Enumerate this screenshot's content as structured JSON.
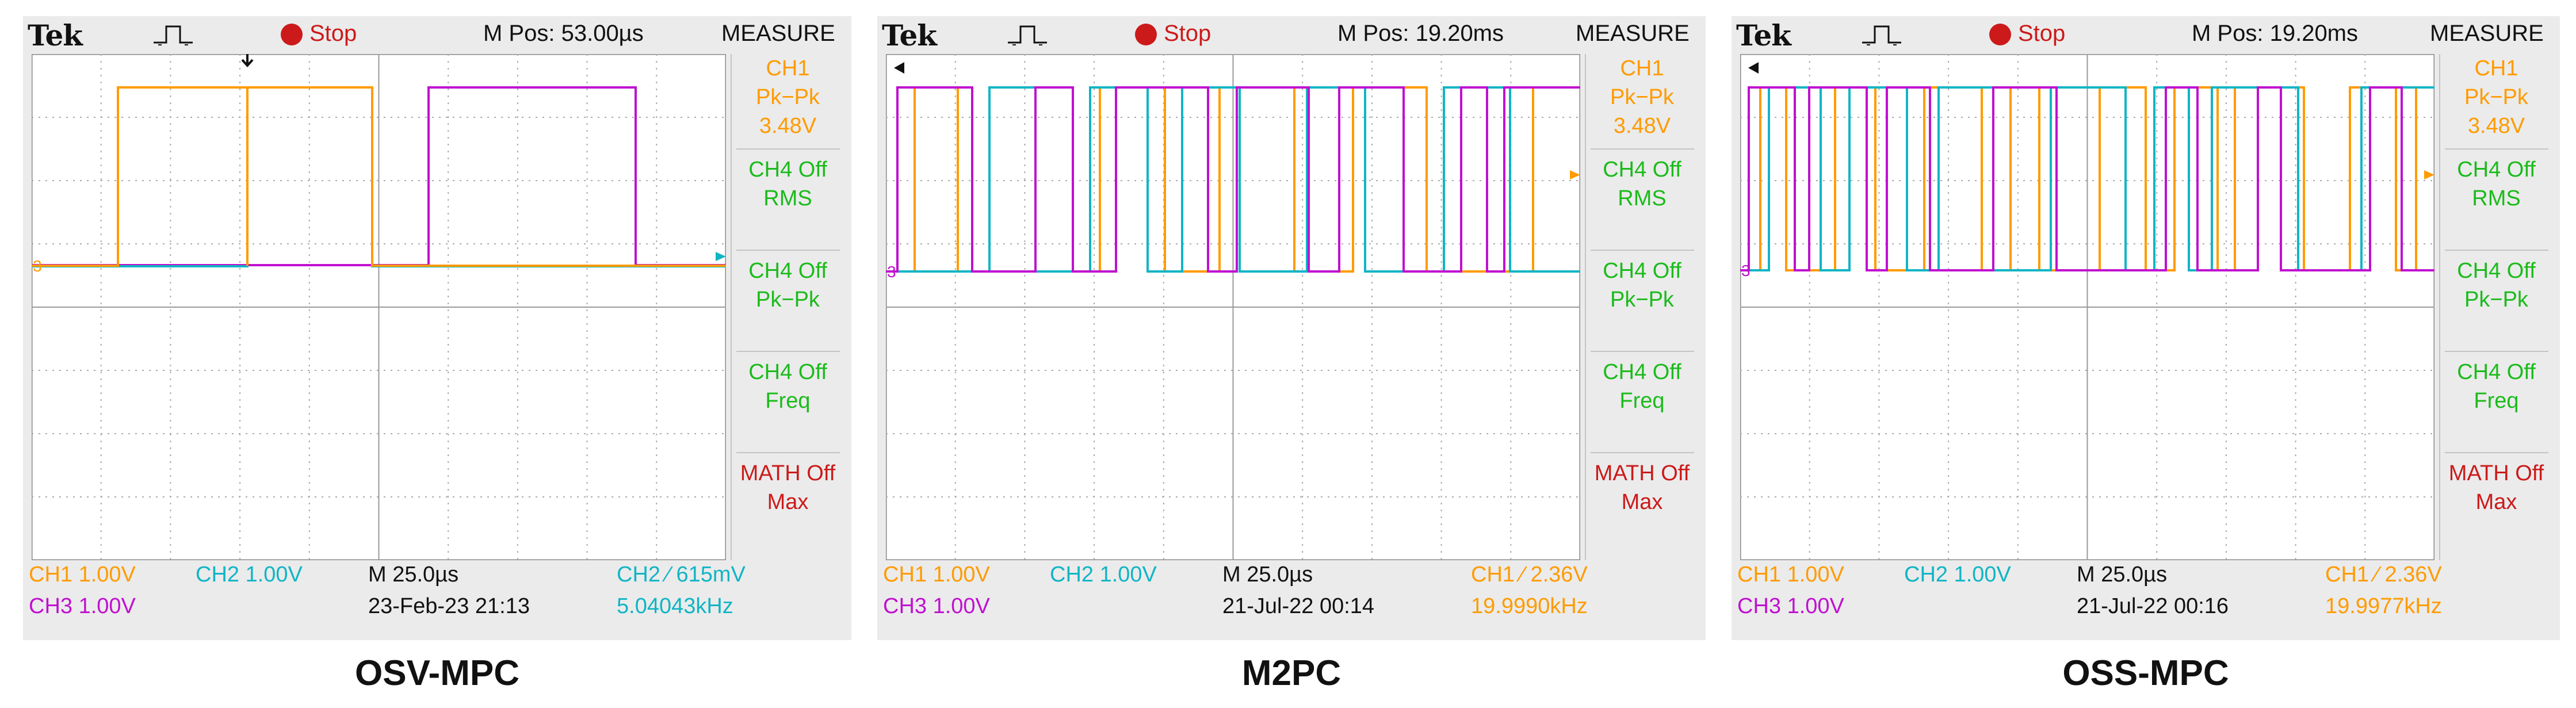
{
  "colors": {
    "ch1": "#ff9b00",
    "ch2": "#10b5c5",
    "ch3": "#c010d0",
    "measure_on": "#1bbb1b",
    "math": "#cc1a1a",
    "stop": "#cc1a1a"
  },
  "scopes": [
    {
      "caption": "OSV-MPC",
      "header": {
        "brand": "Tek",
        "trigger_icon": "pulse-trigger-icon",
        "status": "Stop",
        "mpos": "M Pos: 53.00µs",
        "measure_title": "MEASURE"
      },
      "measurements": [
        {
          "lines": [
            "CH1",
            "Pk−Pk",
            "3.48V"
          ]
        },
        {
          "lines": [
            "CH4 Off",
            "RMS"
          ]
        },
        {
          "lines": [
            "CH4 Off",
            "Pk−Pk"
          ]
        },
        {
          "lines": [
            "CH4 Off",
            "Freq"
          ]
        },
        {
          "lines": [
            "MATH Off",
            "Max"
          ]
        }
      ],
      "footer": {
        "ch1": "CH1  1.00V",
        "ch2": "CH2  1.00V",
        "ch3": "CH3  1.00V",
        "timebase": "M 25.0µs",
        "datetime": "23-Feb-23 21:13",
        "trigger": "CH2 ∕ 615mV",
        "freq": "5.04043kHz"
      }
    },
    {
      "caption": "M2PC",
      "header": {
        "brand": "Tek",
        "trigger_icon": "pulse-trigger-icon",
        "status": "Stop",
        "mpos": "M Pos: 19.20ms",
        "measure_title": "MEASURE"
      },
      "measurements": [
        {
          "lines": [
            "CH1",
            "Pk−Pk",
            "3.48V"
          ]
        },
        {
          "lines": [
            "CH4 Off",
            "RMS"
          ]
        },
        {
          "lines": [
            "CH4 Off",
            "Pk−Pk"
          ]
        },
        {
          "lines": [
            "CH4 Off",
            "Freq"
          ]
        },
        {
          "lines": [
            "MATH Off",
            "Max"
          ]
        }
      ],
      "footer": {
        "ch1": "CH1  1.00V",
        "ch2": "CH2  1.00V",
        "ch3": "CH3  1.00V",
        "timebase": "M 25.0µs",
        "datetime": "21-Jul-22 00:14",
        "trigger": "CH1 ∕ 2.36V",
        "freq": "19.9990kHz"
      }
    },
    {
      "caption": "OSS-MPC",
      "header": {
        "brand": "Tek",
        "trigger_icon": "pulse-trigger-icon",
        "status": "Stop",
        "mpos": "M Pos: 19.20ms",
        "measure_title": "MEASURE"
      },
      "measurements": [
        {
          "lines": [
            "CH1",
            "Pk−Pk",
            "3.48V"
          ]
        },
        {
          "lines": [
            "CH4 Off",
            "RMS"
          ]
        },
        {
          "lines": [
            "CH4 Off",
            "Pk−Pk"
          ]
        },
        {
          "lines": [
            "CH4 Off",
            "Freq"
          ]
        },
        {
          "lines": [
            "MATH Off",
            "Max"
          ]
        }
      ],
      "footer": {
        "ch1": "CH1  1.00V",
        "ch2": "CH2  1.00V",
        "ch3": "CH3  1.00V",
        "timebase": "M 25.0µs",
        "datetime": "21-Jul-22 00:16",
        "trigger": "CH1 ∕ 2.36V",
        "freq": "19.9977kHz"
      }
    }
  ]
}
